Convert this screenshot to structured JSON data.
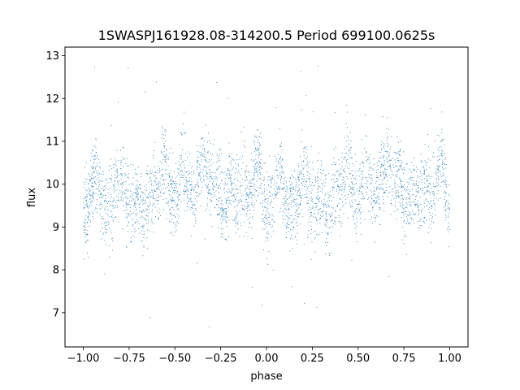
{
  "chart_data": {
    "type": "scatter",
    "title": "1SWASPJ161928.08-314200.5 Period 699100.0625s",
    "xlabel": "phase",
    "ylabel": "flux",
    "xlim": [
      -1.1,
      1.1
    ],
    "ylim": [
      6.2,
      13.2
    ],
    "xticks": [
      -1.0,
      -0.75,
      -0.5,
      -0.25,
      0.0,
      0.25,
      0.5,
      0.75,
      1.0
    ],
    "xtick_labels": [
      "−1.00",
      "−0.75",
      "−0.50",
      "−0.25",
      "0.00",
      "0.25",
      "0.50",
      "0.75",
      "1.00"
    ],
    "yticks": [
      7,
      8,
      9,
      10,
      11,
      12,
      13
    ],
    "ytick_labels": [
      "7",
      "8",
      "9",
      "10",
      "11",
      "12",
      "13"
    ],
    "grid": false,
    "marker_color": "#1f77b4",
    "series": [
      {
        "profile_phase": [
          0.0,
          0.02,
          0.04,
          0.06,
          0.08,
          0.1,
          0.12,
          0.14,
          0.16,
          0.18,
          0.2,
          0.22,
          0.24,
          0.26,
          0.28,
          0.3,
          0.32,
          0.34,
          0.36,
          0.38,
          0.4,
          0.42,
          0.44,
          0.46,
          0.48,
          0.5,
          0.52,
          0.54,
          0.56,
          0.58,
          0.6,
          0.62,
          0.64,
          0.66,
          0.68,
          0.7,
          0.72,
          0.74,
          0.76,
          0.78,
          0.8,
          0.82,
          0.84,
          0.86,
          0.88,
          0.9,
          0.92,
          0.94,
          0.96,
          0.98,
          1.0
        ],
        "profile_flux": [
          9.2,
          9.5,
          9.8,
          10.2,
          10.3,
          9.6,
          9.3,
          9.7,
          9.5,
          9.9,
          10.2,
          10.1,
          9.6,
          9.3,
          9.6,
          9.8,
          9.4,
          9.2,
          9.7,
          10.0,
          9.8,
          10.1,
          10.6,
          10.2,
          9.7,
          9.6,
          9.9,
          10.4,
          10.2,
          9.8,
          9.7,
          10.1,
          10.3,
          10.6,
          10.2,
          9.9,
          10.3,
          10.0,
          9.5,
          9.7,
          10.0,
          9.8,
          9.5,
          9.9,
          10.1,
          9.6,
          9.8,
          10.4,
          10.6,
          9.7,
          9.4
        ],
        "profile_scatter": [
          0.5,
          0.5,
          0.45,
          0.5,
          0.55,
          0.5,
          0.45,
          0.5,
          0.5,
          0.45,
          0.5,
          0.5,
          0.6,
          0.6,
          0.5,
          0.45,
          0.5,
          0.55,
          0.5,
          0.5,
          0.45,
          0.5,
          0.6,
          0.5,
          0.45,
          0.5,
          0.5,
          0.55,
          0.5,
          0.45,
          0.5,
          0.55,
          0.5,
          0.5,
          0.5,
          0.45,
          0.5,
          0.55,
          0.5,
          0.45,
          0.5,
          0.5,
          0.55,
          0.6,
          0.55,
          0.5,
          0.5,
          0.45,
          0.45,
          0.5,
          0.5
        ],
        "phase_range": [
          -1.0,
          1.0
        ],
        "outlier_range": [
          6.5,
          12.8
        ]
      }
    ]
  }
}
